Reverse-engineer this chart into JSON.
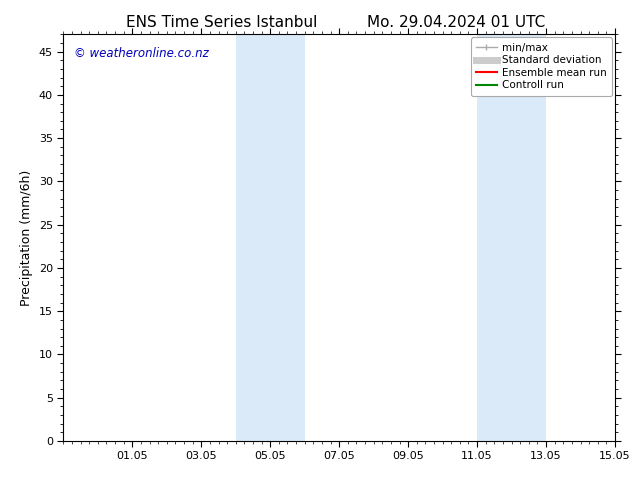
{
  "title_left": "ENS Time Series Istanbul",
  "title_right": "Mo. 29.04.2024 01 UTC",
  "ylabel": "Precipitation (mm/6h)",
  "ylim": [
    0,
    47
  ],
  "yticks": [
    0,
    5,
    10,
    15,
    20,
    25,
    30,
    35,
    40,
    45
  ],
  "xlim_min": 0.0,
  "xlim_max": 16.0,
  "xtick_positions": [
    2,
    4,
    6,
    8,
    10,
    12,
    14,
    16
  ],
  "xtick_labels": [
    "01.05",
    "03.05",
    "05.05",
    "07.05",
    "09.05",
    "11.05",
    "13.05",
    "15.05"
  ],
  "watermark": "© weatheronline.co.nz",
  "watermark_color": "#0000bb",
  "bg_color": "#ffffff",
  "plot_bg_color": "#ffffff",
  "shaded_regions": [
    {
      "x_start": 5.0,
      "x_end": 7.0
    },
    {
      "x_start": 12.0,
      "x_end": 14.0
    }
  ],
  "shaded_color": "#daeaf8",
  "legend_entries": [
    {
      "label": "min/max",
      "color": "#aaaaaa",
      "lw": 1.0
    },
    {
      "label": "Standard deviation",
      "color": "#cccccc",
      "lw": 5
    },
    {
      "label": "Ensemble mean run",
      "color": "#ff0000",
      "lw": 1.5
    },
    {
      "label": "Controll run",
      "color": "#008800",
      "lw": 1.5
    }
  ],
  "title_fontsize": 11,
  "tick_fontsize": 8,
  "label_fontsize": 9,
  "legend_fontsize": 7.5
}
